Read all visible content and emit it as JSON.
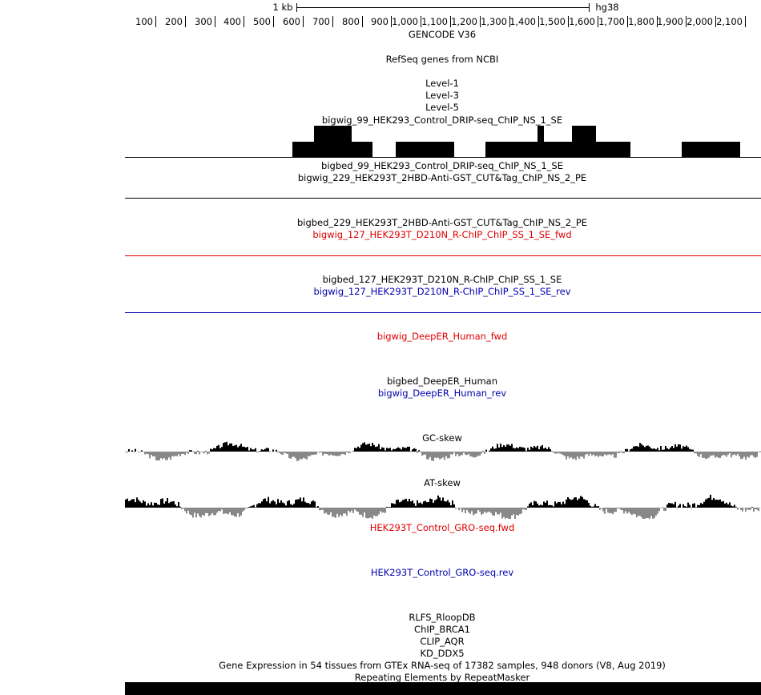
{
  "ruler": {
    "scale_label": "1 kb",
    "assembly": "hg38",
    "ticks": [
      "100",
      "200",
      "300",
      "400",
      "500",
      "600",
      "700",
      "800",
      "900",
      "1,000",
      "1,100",
      "1,200",
      "1,300",
      "1,400",
      "1,500",
      "1,600",
      "1,700",
      "1,800",
      "1,900",
      "2,000",
      "2,100"
    ]
  },
  "tracks": {
    "gencode": "GENCODE V36",
    "refseq": "RefSeq genes from NCBI",
    "level1": "Level-1",
    "level3": "Level-3",
    "level5": "Level-5",
    "bigwig_99": "bigwig_99_HEK293_Control_DRIP-seq_ChIP_NS_1_SE",
    "bigbed_99": "bigbed_99_HEK293_Control_DRIP-seq_ChIP_NS_1_SE",
    "bigwig_229": "bigwig_229_HEK293T_2HBD-Anti-GST_CUT&Tag_ChIP_NS_2_PE",
    "bigbed_229": "bigbed_229_HEK293T_2HBD-Anti-GST_CUT&Tag_ChIP_NS_2_PE",
    "bigwig_127_fwd": "bigwig_127_HEK293T_D210N_R-ChIP_ChIP_SS_1_SE_fwd",
    "bigbed_127": "bigbed_127_HEK293T_D210N_R-ChIP_ChIP_SS_1_SE",
    "bigwig_127_rev": "bigwig_127_HEK293T_D210N_R-ChIP_ChIP_SS_1_SE_rev",
    "deeper_fwd": "bigwig_DeepER_Human_fwd",
    "deeper_bed": "bigbed_DeepER_Human",
    "deeper_rev": "bigwig_DeepER_Human_rev",
    "gc_skew": "GC-skew",
    "at_skew": "AT-skew",
    "gro_fwd": "HEK293T_Control_GRO-seq.fwd",
    "gro_rev": "HEK293T_Control_GRO-seq.rev",
    "rlfs": "RLFS_RloopDB",
    "chip_brca1": "ChIP_BRCA1",
    "clip_aqr": "CLIP_AQR",
    "kd_ddx5": "KD_DDX5",
    "gtex": "Gene Expression in 54 tissues from GTEx RNA-seq of 17382 samples, 948 donors (V8, Aug 2019)",
    "repeatmasker": "Repeating Elements by RepeatMasker"
  },
  "colors": {
    "fwd": "#e00000",
    "rev": "#0000b0",
    "neg": "#888888"
  }
}
